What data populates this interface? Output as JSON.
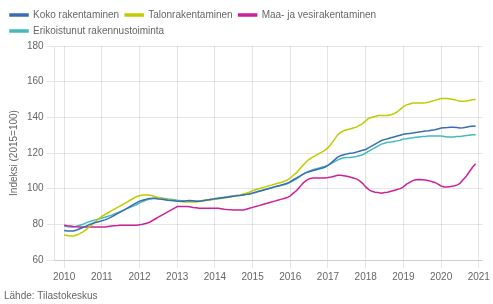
{
  "chart_data": {
    "type": "line",
    "ylabel": "Indeksi (2015=100)",
    "annotation": "Lähde: Tilastokeskus",
    "xlim": [
      2009.75,
      2021.1
    ],
    "xticks": [
      2010,
      2011,
      2012,
      2013,
      2014,
      2015,
      2016,
      2017,
      2018,
      2019,
      2020,
      2021
    ],
    "ylim": [
      60,
      180
    ],
    "yticks": [
      60,
      80,
      100,
      120,
      140,
      160,
      180
    ],
    "grid": true,
    "legend": "upper left",
    "x": [
      2010.0,
      2010.083,
      2010.167,
      2010.25,
      2010.333,
      2010.417,
      2010.5,
      2010.583,
      2010.667,
      2010.75,
      2010.833,
      2010.917,
      2011.0,
      2011.083,
      2011.167,
      2011.25,
      2011.333,
      2011.417,
      2011.5,
      2011.583,
      2011.667,
      2011.75,
      2011.833,
      2011.917,
      2012.0,
      2012.083,
      2012.167,
      2012.25,
      2012.333,
      2012.417,
      2012.5,
      2012.583,
      2012.667,
      2012.75,
      2012.833,
      2012.917,
      2013.0,
      2013.083,
      2013.167,
      2013.25,
      2013.333,
      2013.417,
      2013.5,
      2013.583,
      2013.667,
      2013.75,
      2013.833,
      2013.917,
      2014.0,
      2014.083,
      2014.167,
      2014.25,
      2014.333,
      2014.417,
      2014.5,
      2014.583,
      2014.667,
      2014.75,
      2014.833,
      2014.917,
      2015.0,
      2015.083,
      2015.167,
      2015.25,
      2015.333,
      2015.417,
      2015.5,
      2015.583,
      2015.667,
      2015.75,
      2015.833,
      2015.917,
      2016.0,
      2016.083,
      2016.167,
      2016.25,
      2016.333,
      2016.417,
      2016.5,
      2016.583,
      2016.667,
      2016.75,
      2016.833,
      2016.917,
      2017.0,
      2017.083,
      2017.167,
      2017.25,
      2017.333,
      2017.417,
      2017.5,
      2017.583,
      2017.667,
      2017.75,
      2017.833,
      2017.917,
      2018.0,
      2018.083,
      2018.167,
      2018.25,
      2018.333,
      2018.417,
      2018.5,
      2018.583,
      2018.667,
      2018.75,
      2018.833,
      2018.917,
      2019.0,
      2019.083,
      2019.167,
      2019.25,
      2019.333,
      2019.417,
      2019.5,
      2019.583,
      2019.667,
      2019.75,
      2019.833,
      2019.917,
      2020.0,
      2020.083,
      2020.167,
      2020.25,
      2020.333,
      2020.417,
      2020.5,
      2020.583,
      2020.667,
      2020.75,
      2020.833,
      2020.917
    ],
    "series": [
      {
        "name": "Koko rakentaminen",
        "color": "#3B6DB4",
        "values": [
          76.5,
          76.3,
          76.2,
          76.3,
          76.8,
          77.5,
          78.2,
          79.0,
          79.8,
          80.5,
          81.0,
          81.5,
          82.0,
          82.5,
          83.2,
          84.0,
          85.0,
          86.0,
          87.0,
          88.0,
          89.0,
          90.0,
          91.0,
          92.0,
          93.0,
          93.5,
          94.0,
          94.5,
          94.5,
          94.5,
          94.2,
          94.0,
          93.8,
          93.5,
          93.3,
          93.2,
          93.0,
          93.0,
          93.0,
          93.2,
          93.3,
          93.2,
          93.0,
          93.0,
          93.2,
          93.5,
          93.8,
          94.0,
          94.3,
          94.5,
          94.8,
          95.0,
          95.2,
          95.5,
          95.8,
          96.0,
          96.2,
          96.5,
          96.8,
          97.0,
          97.5,
          98.0,
          98.5,
          99.0,
          99.5,
          100.0,
          100.5,
          101.0,
          101.5,
          102.0,
          102.5,
          103.0,
          104.0,
          105.0,
          106.0,
          107.0,
          108.0,
          109.0,
          109.5,
          110.0,
          110.5,
          111.0,
          111.5,
          112.0,
          113.0,
          114.5,
          116.0,
          117.5,
          118.5,
          119.0,
          119.5,
          119.8,
          120.0,
          120.5,
          121.0,
          121.5,
          122.0,
          123.0,
          124.0,
          125.0,
          126.0,
          127.0,
          127.5,
          128.0,
          128.5,
          129.0,
          129.5,
          130.0,
          130.5,
          130.8,
          131.0,
          131.2,
          131.5,
          131.8,
          132.0,
          132.3,
          132.5,
          132.8,
          133.0,
          133.5,
          134.0,
          134.2,
          134.3,
          134.5,
          134.5,
          134.3,
          134.0,
          134.2,
          134.5,
          134.8,
          135.0,
          135.2
        ]
      },
      {
        "name": "Talonrakentaminen",
        "color": "#BFCC00",
        "values": [
          74.0,
          73.8,
          73.5,
          73.5,
          74.0,
          74.8,
          75.8,
          77.0,
          78.5,
          80.0,
          81.5,
          83.0,
          84.5,
          85.5,
          86.5,
          87.5,
          88.5,
          89.5,
          90.5,
          91.5,
          92.5,
          93.5,
          94.5,
          95.5,
          96.0,
          96.5,
          96.5,
          96.5,
          96.0,
          95.5,
          95.0,
          94.5,
          94.0,
          93.8,
          93.5,
          93.3,
          93.0,
          92.8,
          92.5,
          92.5,
          92.5,
          92.5,
          92.5,
          92.8,
          93.0,
          93.3,
          93.5,
          93.8,
          94.0,
          94.3,
          94.5,
          94.8,
          95.0,
          95.5,
          96.0,
          96.2,
          96.5,
          97.0,
          97.5,
          98.0,
          98.8,
          99.5,
          100.0,
          100.5,
          101.0,
          101.5,
          102.0,
          102.5,
          103.0,
          103.5,
          104.0,
          104.8,
          106.0,
          107.5,
          109.0,
          111.0,
          113.0,
          115.0,
          116.5,
          117.5,
          118.5,
          119.5,
          120.5,
          121.5,
          123.0,
          125.0,
          127.5,
          130.0,
          131.5,
          132.5,
          133.0,
          133.5,
          134.0,
          134.5,
          135.5,
          136.5,
          138.0,
          139.5,
          140.0,
          140.5,
          141.0,
          141.0,
          141.0,
          141.0,
          141.5,
          142.0,
          143.0,
          144.5,
          146.0,
          147.0,
          147.5,
          148.0,
          148.0,
          148.0,
          148.0,
          148.2,
          148.5,
          149.0,
          149.5,
          150.0,
          150.5,
          150.5,
          150.5,
          150.3,
          150.0,
          149.5,
          149.0,
          149.0,
          149.2,
          149.5,
          149.8,
          150.0
        ]
      },
      {
        "name": "Maa- ja vesirakentaminen",
        "color": "#CC2299",
        "values": [
          79.5,
          79.2,
          79.0,
          78.8,
          78.7,
          78.5,
          78.5,
          78.5,
          78.5,
          78.5,
          78.5,
          78.5,
          78.5,
          78.5,
          78.8,
          79.0,
          79.2,
          79.3,
          79.5,
          79.5,
          79.5,
          79.5,
          79.5,
          79.5,
          79.8,
          80.0,
          80.5,
          81.0,
          82.0,
          83.0,
          84.0,
          85.0,
          86.0,
          87.0,
          88.0,
          89.0,
          90.0,
          90.0,
          90.0,
          90.0,
          89.8,
          89.5,
          89.3,
          89.0,
          89.0,
          89.0,
          89.0,
          89.0,
          89.0,
          89.0,
          88.8,
          88.5,
          88.3,
          88.2,
          88.0,
          88.0,
          88.0,
          88.0,
          88.5,
          89.0,
          89.5,
          90.0,
          90.5,
          91.0,
          91.5,
          92.0,
          92.5,
          93.0,
          93.5,
          94.0,
          94.5,
          95.0,
          96.0,
          97.5,
          99.0,
          101.0,
          103.0,
          104.5,
          105.5,
          106.0,
          106.0,
          106.0,
          106.0,
          106.0,
          106.2,
          106.5,
          107.0,
          107.5,
          107.5,
          107.3,
          107.0,
          106.5,
          106.0,
          105.5,
          104.5,
          103.0,
          101.0,
          99.5,
          98.5,
          98.0,
          97.8,
          97.5,
          97.8,
          98.0,
          98.5,
          99.0,
          99.5,
          100.0,
          101.0,
          102.5,
          103.5,
          104.5,
          105.0,
          105.2,
          105.0,
          104.8,
          104.5,
          104.0,
          103.5,
          102.5,
          101.5,
          101.0,
          101.0,
          101.2,
          101.5,
          102.0,
          103.0,
          105.0,
          107.0,
          109.5,
          112.0,
          114.0
        ]
      },
      {
        "name": "Erikoistunut rakennustoiminta",
        "color": "#44BBBB",
        "values": [
          79.0,
          78.8,
          78.5,
          78.5,
          79.0,
          79.5,
          80.0,
          80.8,
          81.5,
          82.0,
          82.5,
          83.0,
          83.5,
          84.0,
          84.5,
          85.0,
          85.8,
          86.5,
          87.2,
          88.0,
          88.8,
          89.5,
          90.2,
          91.0,
          92.0,
          92.8,
          93.5,
          94.0,
          94.5,
          94.8,
          94.8,
          94.8,
          94.5,
          94.2,
          94.0,
          93.8,
          93.5,
          93.3,
          93.2,
          93.0,
          93.0,
          93.0,
          93.0,
          93.0,
          93.2,
          93.5,
          93.8,
          94.0,
          94.5,
          94.8,
          95.0,
          95.2,
          95.5,
          95.8,
          96.0,
          96.2,
          96.3,
          96.5,
          96.8,
          97.0,
          97.5,
          98.0,
          98.5,
          99.0,
          99.5,
          100.0,
          100.5,
          101.0,
          101.3,
          101.8,
          102.2,
          102.8,
          103.5,
          104.5,
          105.5,
          106.8,
          108.0,
          109.0,
          109.8,
          110.5,
          111.0,
          111.5,
          112.0,
          112.5,
          113.2,
          114.0,
          115.0,
          116.0,
          116.8,
          117.3,
          117.5,
          117.5,
          117.8,
          118.0,
          118.5,
          119.0,
          120.0,
          121.0,
          122.0,
          123.0,
          124.0,
          125.0,
          125.5,
          126.0,
          126.2,
          126.5,
          126.8,
          127.2,
          127.8,
          128.0,
          128.3,
          128.5,
          128.8,
          129.0,
          129.2,
          129.3,
          129.5,
          129.5,
          129.5,
          129.5,
          129.5,
          129.3,
          129.0,
          129.0,
          129.0,
          129.2,
          129.3,
          129.5,
          129.8,
          130.0,
          130.2,
          130.3
        ]
      }
    ]
  }
}
